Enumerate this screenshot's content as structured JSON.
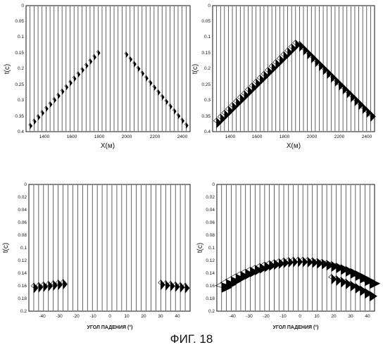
{
  "caption": "ФИГ. 18",
  "panels": [
    {
      "id": "top-left",
      "ylabel": "t(c)",
      "xlabel": "X(м)",
      "x_ticks": [
        "1400",
        "1600",
        "1800",
        "2000",
        "2200",
        "2400"
      ],
      "y_ticks": [
        "0",
        "0.05",
        "0.1",
        "0.15",
        "0.2",
        "0.25",
        "0.3",
        "0.35",
        "0.4"
      ]
    },
    {
      "id": "top-right",
      "ylabel": "t(c)",
      "xlabel": "X(м)",
      "x_ticks": [
        "1400",
        "1600",
        "1800",
        "2000",
        "2200",
        "2400"
      ],
      "y_ticks": [
        "0",
        "0.05",
        "0.1",
        "0.15",
        "0.2",
        "0.25",
        "0.3",
        "0.35",
        "0.4"
      ]
    },
    {
      "id": "bottom-left",
      "ylabel": "t(c)",
      "xlabel": "УГОЛ ПАДЕНИЯ (°)",
      "x_ticks": [
        "-40",
        "-30",
        "-20",
        "-10",
        "0",
        "10",
        "20",
        "30",
        "40"
      ],
      "y_ticks": [
        "0",
        "0.02",
        "0.04",
        "0.06",
        "0.08",
        "0.1",
        "0.12",
        "0.14",
        "0.16",
        "0.18",
        "0.2"
      ]
    },
    {
      "id": "bottom-right",
      "ylabel": "t(c)",
      "xlabel": "УГОЛ ПАДЕНИЯ (°)",
      "x_ticks": [
        "-40",
        "-30",
        "-20",
        "-10",
        "0",
        "10",
        "20",
        "30",
        "40"
      ],
      "y_ticks": [
        "0",
        "0.02",
        "0.04",
        "0.06",
        "0.08",
        "0.1",
        "0.12",
        "0.14",
        "0.16",
        "0.18",
        "0.2"
      ]
    }
  ]
}
